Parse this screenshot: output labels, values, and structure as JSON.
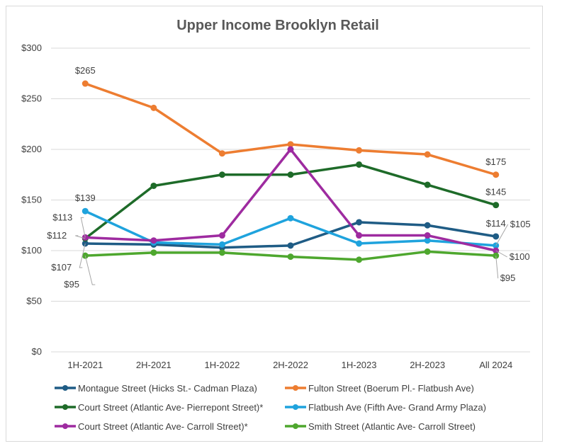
{
  "chart_data": {
    "type": "line",
    "title": "Upper Income Brooklyn Retail",
    "xlabel": "",
    "ylabel": "",
    "ylim": [
      0,
      300
    ],
    "yticks": [
      0,
      50,
      100,
      150,
      200,
      250,
      300
    ],
    "ytick_labels": [
      "$0",
      "$50",
      "$100",
      "$150",
      "$200",
      "$250",
      "$300"
    ],
    "categories": [
      "1H-2021",
      "2H-2021",
      "1H-2022",
      "2H-2022",
      "1H-2023",
      "2H-2023",
      "All 2024"
    ],
    "grid": true,
    "legend_position": "bottom",
    "series": [
      {
        "name": "Montague Street (Hicks St.- Cadman Plaza)",
        "color": "#1f5c85",
        "values": [
          107,
          106,
          103,
          105,
          128,
          125,
          114
        ]
      },
      {
        "name": "Fulton Street (Boerum Pl.- Flatbush Ave)",
        "color": "#ed7d31",
        "values": [
          265,
          241,
          196,
          205,
          199,
          195,
          175
        ]
      },
      {
        "name": "Court Street (Atlantic Ave- Pierrepont Street)*",
        "color": "#1e6b29",
        "values": [
          112,
          164,
          175,
          175,
          185,
          165,
          145
        ]
      },
      {
        "name": "Flatbush Ave (Fifth Ave- Grand Army Plaza)",
        "color": "#1fa3dd",
        "values": [
          139,
          108,
          106,
          132,
          107,
          110,
          105
        ]
      },
      {
        "name": "Court Street (Atlantic Ave- Carroll Street)*",
        "color": "#9e2ba0",
        "values": [
          113,
          110,
          115,
          200,
          115,
          115,
          100
        ]
      },
      {
        "name": "Smith Street (Atlantic Ave- Carroll Street)",
        "color": "#4ea72e",
        "values": [
          95,
          98,
          98,
          94,
          91,
          99,
          95
        ]
      }
    ],
    "data_labels": [
      {
        "series": 1,
        "index": 0,
        "text": "$265"
      },
      {
        "series": 3,
        "index": 0,
        "text": "$139"
      },
      {
        "series": 4,
        "index": 0,
        "text": "$113"
      },
      {
        "series": 2,
        "index": 0,
        "text": "$112"
      },
      {
        "series": 0,
        "index": 0,
        "text": "$107"
      },
      {
        "series": 5,
        "index": 0,
        "text": "$95"
      },
      {
        "series": 1,
        "index": 6,
        "text": "$175"
      },
      {
        "series": 2,
        "index": 6,
        "text": "$145"
      },
      {
        "series": 0,
        "index": 6,
        "text": "$114"
      },
      {
        "series": 3,
        "index": 6,
        "text": "$105"
      },
      {
        "series": 4,
        "index": 6,
        "text": "$100"
      },
      {
        "series": 5,
        "index": 6,
        "text": "$95"
      }
    ]
  }
}
